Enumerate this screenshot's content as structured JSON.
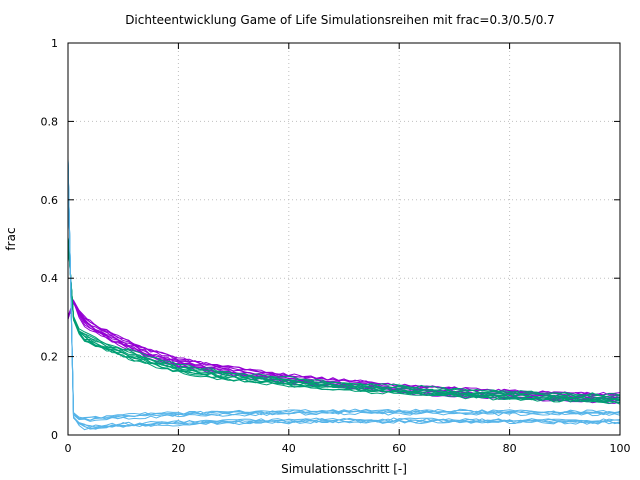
{
  "chart_data": {
    "type": "line",
    "title": "Dichteentwicklung Game of Life Simulationsreihen mit frac=0.3/0.5/0.7",
    "xlabel": "Simulationsschritt [-]",
    "ylabel": "frac",
    "xlim": [
      0,
      100
    ],
    "ylim": [
      0,
      1
    ],
    "xticks": [
      0,
      20,
      40,
      60,
      80,
      100
    ],
    "yticks": [
      0,
      0.2,
      0.4,
      0.6,
      0.8,
      1
    ],
    "xtick_labels": [
      "0",
      "20",
      "40",
      "60",
      "80",
      "100"
    ],
    "ytick_labels": [
      "0",
      "0.2",
      "0.4",
      "0.6",
      "0.8",
      "1"
    ],
    "grid": true,
    "legend": "none",
    "groups": [
      {
        "start": 0.3,
        "color": "#9400d3",
        "runs": 10,
        "x": [
          0,
          1,
          2,
          3,
          4,
          5,
          6,
          8,
          10,
          12,
          15,
          20,
          25,
          30,
          35,
          40,
          45,
          50,
          55,
          60,
          65,
          70,
          75,
          80,
          85,
          90,
          95,
          100
        ],
        "y": [
          0.3,
          0.34,
          0.31,
          0.29,
          0.28,
          0.27,
          0.262,
          0.248,
          0.235,
          0.222,
          0.205,
          0.185,
          0.172,
          0.162,
          0.152,
          0.143,
          0.136,
          0.13,
          0.124,
          0.118,
          0.113,
          0.109,
          0.105,
          0.102,
          0.099,
          0.097,
          0.095,
          0.094
        ],
        "spread": 0.012
      },
      {
        "start": 0.5,
        "color": "#009e73",
        "runs": 10,
        "x": [
          0,
          1,
          2,
          3,
          4,
          5,
          6,
          8,
          10,
          12,
          15,
          20,
          25,
          30,
          35,
          40,
          45,
          50,
          55,
          60,
          65,
          70,
          75,
          80,
          85,
          90,
          95,
          100
        ],
        "y": [
          0.5,
          0.3,
          0.265,
          0.252,
          0.245,
          0.238,
          0.232,
          0.222,
          0.212,
          0.203,
          0.19,
          0.172,
          0.16,
          0.151,
          0.143,
          0.137,
          0.131,
          0.126,
          0.121,
          0.117,
          0.113,
          0.109,
          0.106,
          0.103,
          0.1,
          0.098,
          0.096,
          0.094
        ],
        "spread": 0.012
      },
      {
        "start": 0.7,
        "color": "#56b4e9",
        "runs": 10,
        "x": [
          0,
          1,
          2,
          3,
          4,
          5,
          6,
          8,
          10,
          12,
          15,
          20,
          25,
          30,
          35,
          40,
          45,
          50,
          55,
          60,
          65,
          70,
          75,
          80,
          85,
          90,
          95,
          100
        ],
        "y": [
          0.7,
          0.05,
          0.035,
          0.03,
          0.028,
          0.029,
          0.03,
          0.033,
          0.035,
          0.036,
          0.038,
          0.04,
          0.042,
          0.043,
          0.044,
          0.045,
          0.046,
          0.046,
          0.046,
          0.046,
          0.046,
          0.046,
          0.045,
          0.045,
          0.045,
          0.044,
          0.044,
          0.044
        ],
        "spread": 0.018
      }
    ]
  }
}
